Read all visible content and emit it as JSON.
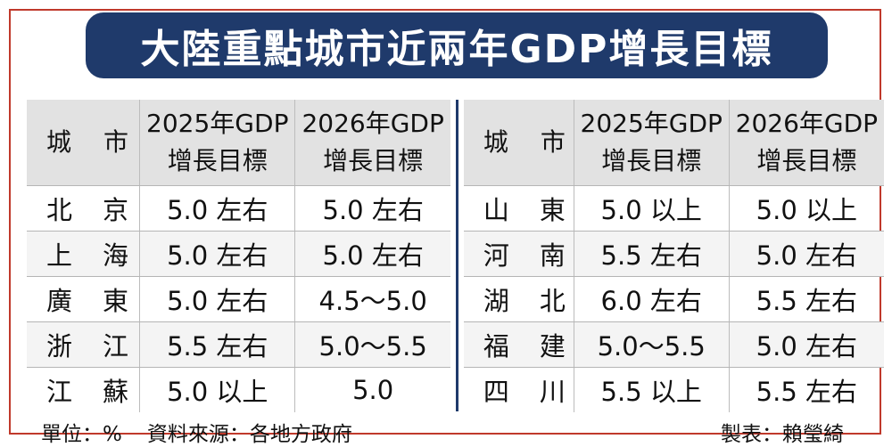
{
  "title": "大陸重點城市近兩年GDP增長目標",
  "colors": {
    "title_bg": "#1f3a6b",
    "border": "#c0392b",
    "header_bg": "#e2e2e2",
    "band_bg": "#f4f4f4"
  },
  "chart_data": {
    "type": "table",
    "title": "大陸重點城市近兩年GDP增長目標",
    "columns": [
      "城市",
      "2025年GDP增長目標",
      "2026年GDP增長目標"
    ],
    "rows": [
      [
        "北京",
        "5.0 左右",
        "5.0 左右"
      ],
      [
        "上海",
        "5.0 左右",
        "5.0 左右"
      ],
      [
        "廣東",
        "5.0 左右",
        "4.5～5.0"
      ],
      [
        "浙江",
        "5.5 左右",
        "5.0～5.5"
      ],
      [
        "江蘇",
        "5.0 以上",
        "5.0"
      ],
      [
        "山東",
        "5.0 以上",
        "5.0 以上"
      ],
      [
        "河南",
        "5.5 左右",
        "5.0 左右"
      ],
      [
        "湖北",
        "6.0 左右",
        "5.5 左右"
      ],
      [
        "福建",
        "5.0～5.5",
        "5.0 左右"
      ],
      [
        "四川",
        "5.5 以上",
        "5.5 左右"
      ]
    ]
  },
  "headers": {
    "city_a": "城",
    "city_b": "市",
    "y2025_l1": "2025年GDP",
    "y2025_l2": "增長目標",
    "y2026_l1": "2026年GDP",
    "y2026_l2": "增長目標"
  },
  "left": [
    {
      "c1": "北",
      "c2": "京",
      "v2025": "5.0 左右",
      "v2026": "5.0 左右"
    },
    {
      "c1": "上",
      "c2": "海",
      "v2025": "5.0 左右",
      "v2026": "5.0 左右"
    },
    {
      "c1": "廣",
      "c2": "東",
      "v2025": "5.0 左右",
      "v2026": "4.5～5.0"
    },
    {
      "c1": "浙",
      "c2": "江",
      "v2025": "5.5 左右",
      "v2026": "5.0～5.5"
    },
    {
      "c1": "江",
      "c2": "蘇",
      "v2025": "5.0 以上",
      "v2026": "5.0"
    }
  ],
  "right": [
    {
      "c1": "山",
      "c2": "東",
      "v2025": "5.0 以上",
      "v2026": "5.0 以上"
    },
    {
      "c1": "河",
      "c2": "南",
      "v2025": "5.5 左右",
      "v2026": "5.0 左右"
    },
    {
      "c1": "湖",
      "c2": "北",
      "v2025": "6.0 左右",
      "v2026": "5.5 左右"
    },
    {
      "c1": "福",
      "c2": "建",
      "v2025": "5.0～5.5",
      "v2026": "5.0 左右"
    },
    {
      "c1": "四",
      "c2": "川",
      "v2025": "5.5 以上",
      "v2026": "5.5 左右"
    }
  ],
  "footer": {
    "unit": "單位：%",
    "source": "資料來源：各地方政府",
    "credit": "製表：賴瑩綺"
  }
}
